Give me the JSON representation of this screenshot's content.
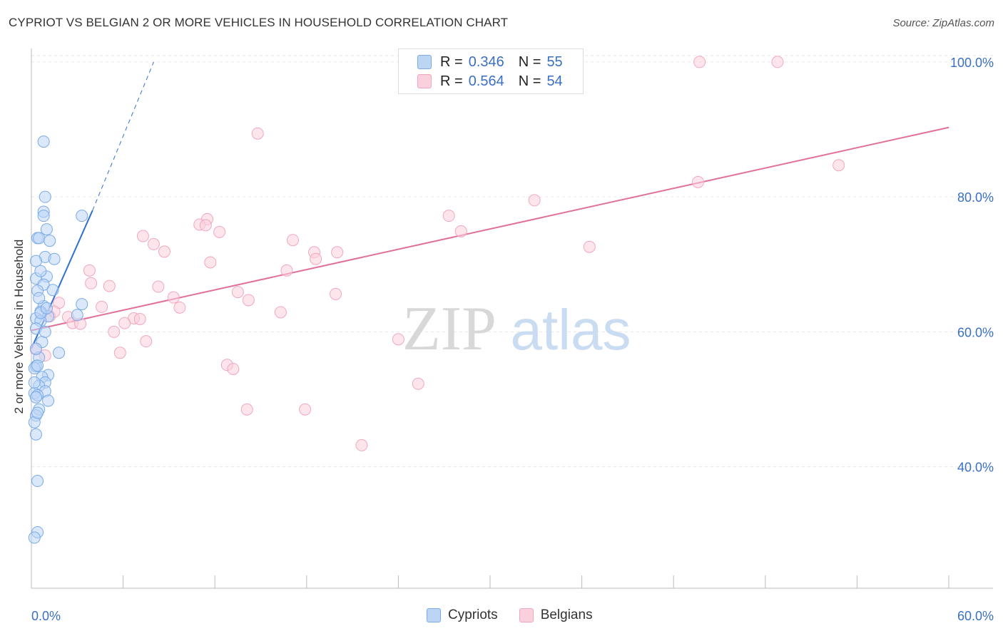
{
  "header": {
    "title": "CYPRIOT VS BELGIAN 2 OR MORE VEHICLES IN HOUSEHOLD CORRELATION CHART",
    "source": "Source: ZipAtlas.com"
  },
  "watermark": {
    "zip": "ZIP",
    "atlas": "atlas"
  },
  "colors": {
    "cypriot": "#7aaae8",
    "cypriot_line": "#3070d0",
    "belgian": "#f1a7bf",
    "belgian_line": "#e0709a",
    "axis_text": "#3a70c4"
  },
  "legend": {
    "rows": [
      {
        "r_label": "R =",
        "r_value": "0.346",
        "n_label": "N =",
        "n_value": "55"
      },
      {
        "r_label": "R =",
        "r_value": "0.564",
        "n_label": "N =",
        "n_value": "54"
      }
    ]
  },
  "bottom_legend": {
    "cypriots": "Cypriots",
    "belgians": "Belgians"
  },
  "chart_data": {
    "type": "scatter",
    "title": "CYPRIOT VS BELGIAN 2 OR MORE VEHICLES IN HOUSEHOLD CORRELATION CHART",
    "xlabel": "",
    "ylabel": "2 or more Vehicles in Household",
    "xlim": [
      0,
      60
    ],
    "ylim": [
      22,
      102
    ],
    "x_tick_labels": [
      "0.0%",
      "60.0%"
    ],
    "y_ticks": [
      40,
      60,
      80,
      100
    ],
    "y_tick_labels": [
      "40.0%",
      "60.0%",
      "80.0%",
      "100.0%"
    ],
    "grid": true,
    "series": [
      {
        "name": "Cypriots",
        "r": 0.346,
        "n": 55,
        "trend": {
          "x0": 0.0,
          "y0": 57.5,
          "x1": 4.0,
          "y1": 78.0,
          "dash_to_x": 8.0,
          "dash_to_y": 100.0
        },
        "points": [
          [
            0.8,
            88.2
          ],
          [
            0.9,
            80.0
          ],
          [
            0.8,
            77.8
          ],
          [
            0.8,
            77.2
          ],
          [
            3.3,
            77.2
          ],
          [
            1.0,
            75.2
          ],
          [
            0.4,
            73.9
          ],
          [
            0.5,
            73.9
          ],
          [
            1.2,
            73.5
          ],
          [
            0.9,
            71.1
          ],
          [
            1.5,
            70.8
          ],
          [
            0.3,
            70.5
          ],
          [
            1.0,
            68.2
          ],
          [
            0.3,
            67.9
          ],
          [
            0.8,
            67.0
          ],
          [
            1.4,
            66.2
          ],
          [
            0.4,
            66.1
          ],
          [
            3.3,
            64.1
          ],
          [
            0.8,
            63.8
          ],
          [
            0.6,
            63.0
          ],
          [
            3.0,
            62.5
          ],
          [
            1.1,
            62.3
          ],
          [
            0.3,
            62.0
          ],
          [
            0.6,
            61.6
          ],
          [
            0.3,
            60.5
          ],
          [
            1.8,
            56.9
          ],
          [
            0.5,
            56.2
          ],
          [
            0.3,
            54.9
          ],
          [
            0.2,
            54.6
          ],
          [
            1.1,
            53.6
          ],
          [
            0.7,
            53.3
          ],
          [
            0.9,
            52.5
          ],
          [
            0.5,
            52.0
          ],
          [
            0.9,
            51.2
          ],
          [
            0.2,
            50.9
          ],
          [
            0.4,
            50.6
          ],
          [
            0.3,
            50.3
          ],
          [
            1.1,
            49.8
          ],
          [
            0.5,
            48.5
          ],
          [
            0.3,
            47.6
          ],
          [
            0.2,
            46.6
          ],
          [
            0.3,
            44.8
          ],
          [
            0.4,
            37.9
          ],
          [
            0.4,
            30.3
          ],
          [
            0.2,
            29.5
          ],
          [
            0.6,
            62.8
          ],
          [
            0.4,
            55.0
          ],
          [
            0.7,
            58.5
          ],
          [
            0.5,
            65.0
          ],
          [
            0.3,
            57.5
          ],
          [
            0.9,
            60.0
          ],
          [
            0.2,
            52.5
          ],
          [
            0.6,
            69.0
          ],
          [
            0.4,
            48.0
          ],
          [
            1.0,
            63.5
          ]
        ]
      },
      {
        "name": "Belgians",
        "r": 0.564,
        "n": 54,
        "trend": {
          "x0": 0.0,
          "y0": 60.2,
          "x1": 60.0,
          "y1": 90.3
        },
        "points": [
          [
            43.7,
            100.0
          ],
          [
            48.8,
            100.0
          ],
          [
            14.8,
            89.4
          ],
          [
            52.8,
            84.7
          ],
          [
            43.6,
            82.2
          ],
          [
            32.9,
            79.5
          ],
          [
            11.5,
            76.7
          ],
          [
            11.0,
            75.9
          ],
          [
            11.4,
            75.8
          ],
          [
            27.3,
            77.2
          ],
          [
            12.3,
            74.8
          ],
          [
            28.1,
            74.9
          ],
          [
            7.3,
            74.2
          ],
          [
            17.1,
            73.6
          ],
          [
            8.0,
            73.0
          ],
          [
            36.5,
            72.6
          ],
          [
            8.7,
            71.9
          ],
          [
            18.5,
            71.8
          ],
          [
            20.0,
            71.8
          ],
          [
            18.6,
            70.8
          ],
          [
            11.7,
            70.3
          ],
          [
            3.8,
            69.1
          ],
          [
            16.7,
            69.1
          ],
          [
            3.9,
            67.2
          ],
          [
            5.1,
            66.8
          ],
          [
            8.3,
            66.7
          ],
          [
            13.5,
            65.9
          ],
          [
            19.9,
            65.6
          ],
          [
            9.3,
            65.1
          ],
          [
            14.2,
            64.7
          ],
          [
            1.8,
            64.3
          ],
          [
            4.6,
            63.7
          ],
          [
            9.7,
            63.6
          ],
          [
            16.3,
            62.9
          ],
          [
            1.2,
            62.3
          ],
          [
            2.4,
            62.2
          ],
          [
            6.7,
            62.0
          ],
          [
            7.1,
            61.9
          ],
          [
            6.1,
            61.3
          ],
          [
            2.7,
            61.3
          ],
          [
            3.2,
            61.2
          ],
          [
            5.4,
            60.0
          ],
          [
            7.5,
            58.6
          ],
          [
            24.0,
            58.9
          ],
          [
            5.8,
            56.9
          ],
          [
            0.3,
            57.4
          ],
          [
            0.9,
            56.5
          ],
          [
            12.8,
            55.1
          ],
          [
            13.2,
            54.5
          ],
          [
            25.3,
            52.3
          ],
          [
            14.1,
            48.5
          ],
          [
            17.9,
            48.5
          ],
          [
            21.6,
            43.2
          ],
          [
            1.5,
            63.0
          ]
        ]
      }
    ]
  }
}
